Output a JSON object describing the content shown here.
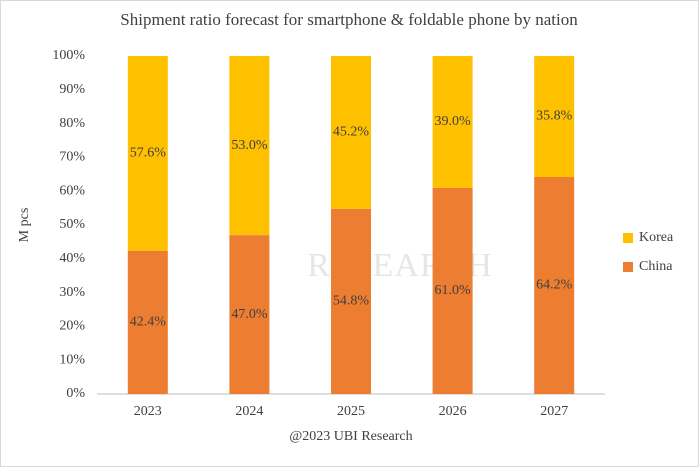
{
  "chart_data": {
    "type": "stacked-bar",
    "title": "Shipment ratio forecast for smartphone & foldable phone by nation",
    "y_label": "M pcs",
    "x_label": "@2023 UBI Research",
    "watermark": "RESEARCH",
    "categories": [
      "2023",
      "2024",
      "2025",
      "2026",
      "2027"
    ],
    "series": [
      {
        "name": "China",
        "color": "#ed7d31",
        "values": [
          42.4,
          47.0,
          54.8,
          61.0,
          64.2
        ],
        "value_labels": [
          "42.4%",
          "47.0%",
          "54.8%",
          "61.0%",
          "64.2%"
        ]
      },
      {
        "name": "Korea",
        "color": "#ffc000",
        "values": [
          57.6,
          53.0,
          45.2,
          39.0,
          35.8
        ],
        "value_labels": [
          "57.6%",
          "53.0%",
          "45.2%",
          "39.0%",
          "35.8%"
        ]
      }
    ],
    "ylim": [
      0,
      100
    ],
    "yticks": [
      {
        "value": 0,
        "label": "0%"
      },
      {
        "value": 10,
        "label": "10%"
      },
      {
        "value": 20,
        "label": "20%"
      },
      {
        "value": 30,
        "label": "30%"
      },
      {
        "value": 40,
        "label": "40%"
      },
      {
        "value": 50,
        "label": "50%"
      },
      {
        "value": 60,
        "label": "60%"
      },
      {
        "value": 70,
        "label": "70%"
      },
      {
        "value": 80,
        "label": "80%"
      },
      {
        "value": 90,
        "label": "90%"
      },
      {
        "value": 100,
        "label": "100%"
      }
    ],
    "grid": false,
    "legend": "right"
  }
}
